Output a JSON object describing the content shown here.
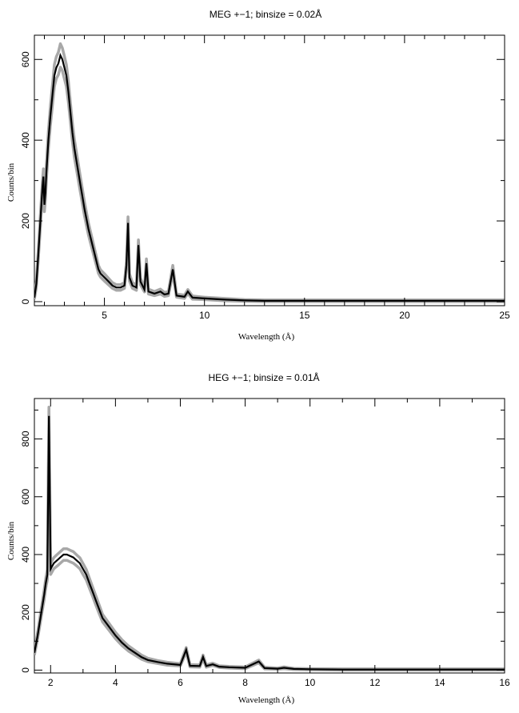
{
  "chart_data": [
    {
      "type": "line",
      "title": "MEG +−1; binsize = 0.02Å",
      "xlabel": "Wavelength (Å)",
      "ylabel": "Counts/bin",
      "xlim": [
        1.5,
        25
      ],
      "ylim": [
        -10,
        660
      ],
      "xticks": [
        5,
        10,
        15,
        20,
        25
      ],
      "yticks": [
        0,
        200,
        400,
        600
      ],
      "grid": false,
      "series": [
        {
          "x": [
            1.5,
            1.6,
            1.7,
            1.8,
            1.9,
            1.95,
            2.0,
            2.05,
            2.1,
            2.2,
            2.3,
            2.4,
            2.5,
            2.6,
            2.7,
            2.8,
            2.9,
            3.0,
            3.1,
            3.2,
            3.3,
            3.4,
            3.5,
            3.6,
            3.7,
            3.8,
            3.9,
            4.0,
            4.2,
            4.4,
            4.6,
            4.7,
            4.8,
            5.0,
            5.2,
            5.4,
            5.6,
            5.8,
            6.0,
            6.1,
            6.18,
            6.25,
            6.4,
            6.6,
            6.7,
            6.8,
            7.0,
            7.1,
            7.2,
            7.5,
            7.8,
            8.0,
            8.2,
            8.42,
            8.6,
            9.0,
            9.17,
            9.4,
            10.0,
            11.0,
            12.0,
            13.0,
            15.0,
            18.0,
            21.0,
            25.0
          ],
          "y": [
            10,
            45,
            120,
            200,
            280,
            310,
            240,
            270,
            320,
            400,
            460,
            510,
            560,
            580,
            590,
            610,
            600,
            580,
            560,
            520,
            470,
            420,
            380,
            350,
            320,
            290,
            260,
            230,
            180,
            140,
            100,
            80,
            70,
            60,
            50,
            40,
            35,
            35,
            40,
            90,
            195,
            60,
            40,
            35,
            140,
            50,
            30,
            95,
            25,
            20,
            25,
            18,
            20,
            80,
            15,
            12,
            25,
            10,
            8,
            5,
            3,
            2,
            2,
            2,
            2,
            2
          ],
          "err": [
            4,
            8,
            12,
            15,
            18,
            19,
            17,
            18,
            19,
            22,
            24,
            25,
            27,
            27,
            28,
            29,
            28,
            28,
            27,
            26,
            24,
            23,
            22,
            21,
            20,
            19,
            18,
            17,
            15,
            13,
            11,
            10,
            9,
            9,
            8,
            7,
            7,
            7,
            7,
            10,
            15,
            9,
            7,
            7,
            13,
            8,
            6,
            11,
            6,
            5,
            6,
            5,
            5,
            10,
            4,
            4,
            5,
            4,
            3,
            3,
            2,
            2,
            2,
            2,
            2,
            2
          ]
        }
      ]
    },
    {
      "type": "line",
      "title": "HEG +−1; binsize = 0.01Å",
      "xlabel": "Wavelength (Å)",
      "ylabel": "Counts/bin",
      "xlim": [
        1.5,
        16
      ],
      "ylim": [
        -10,
        940
      ],
      "xticks": [
        2,
        4,
        6,
        8,
        10,
        12,
        14,
        16
      ],
      "yticks": [
        0,
        200,
        400,
        600,
        800
      ],
      "grid": false,
      "series": [
        {
          "x": [
            1.5,
            1.6,
            1.7,
            1.8,
            1.85,
            1.9,
            1.95,
            2.0,
            2.1,
            2.2,
            2.3,
            2.4,
            2.5,
            2.6,
            2.7,
            2.8,
            2.9,
            3.0,
            3.1,
            3.2,
            3.3,
            3.4,
            3.5,
            3.6,
            3.8,
            4.0,
            4.2,
            4.4,
            4.6,
            4.8,
            5.0,
            5.3,
            5.6,
            6.0,
            6.18,
            6.3,
            6.6,
            6.7,
            6.8,
            7.0,
            7.2,
            7.5,
            8.0,
            8.42,
            8.6,
            9.0,
            9.2,
            9.5,
            10.0,
            11.0,
            12.0,
            14.0,
            16.0
          ],
          "y": [
            60,
            120,
            190,
            260,
            300,
            330,
            880,
            350,
            370,
            380,
            390,
            400,
            400,
            395,
            390,
            380,
            370,
            350,
            330,
            300,
            270,
            240,
            210,
            180,
            150,
            120,
            95,
            75,
            60,
            45,
            35,
            28,
            22,
            18,
            70,
            15,
            14,
            45,
            14,
            20,
            12,
            10,
            8,
            30,
            7,
            5,
            8,
            4,
            3,
            2,
            2,
            2,
            2
          ],
          "err": [
            8,
            11,
            14,
            16,
            17,
            18,
            30,
            19,
            19,
            20,
            20,
            20,
            20,
            20,
            20,
            19,
            19,
            19,
            18,
            17,
            16,
            16,
            15,
            13,
            12,
            11,
            10,
            9,
            8,
            7,
            6,
            5,
            5,
            4,
            8,
            4,
            4,
            7,
            4,
            4,
            3,
            3,
            3,
            5,
            3,
            2,
            3,
            2,
            2,
            2,
            2,
            2,
            2
          ]
        }
      ]
    }
  ]
}
